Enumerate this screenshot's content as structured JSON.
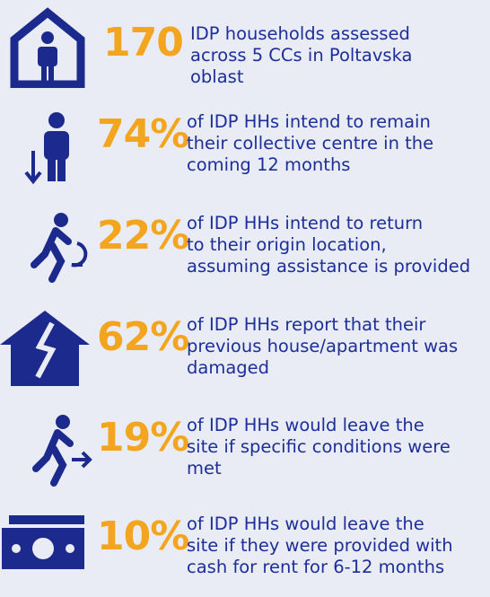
{
  "items": [
    {
      "figure": "170",
      "lines": [
        "IDP households assessed",
        "across 5 CCs in Poltavska",
        "oblast"
      ]
    },
    {
      "figure": "74%",
      "lines": [
        "of IDP HHs intend to remain",
        "their collective centre in the",
        "coming 12 months"
      ]
    },
    {
      "figure": "22%",
      "lines": [
        "of IDP HHs intend to return",
        "to their origin location,",
        "assuming assistance is provided"
      ]
    },
    {
      "figure": "62%",
      "lines": [
        "of IDP HHs report that their",
        "previous house/apartment was",
        "damaged"
      ]
    },
    {
      "figure": "19%",
      "lines": [
        "of IDP HHs would leave the",
        "site if specific conditions were",
        "met"
      ]
    },
    {
      "figure": "10%",
      "lines": [
        "of IDP HHs would leave the",
        "site if they were provided with",
        "cash for rent for 6-12 months"
      ]
    }
  ]
}
